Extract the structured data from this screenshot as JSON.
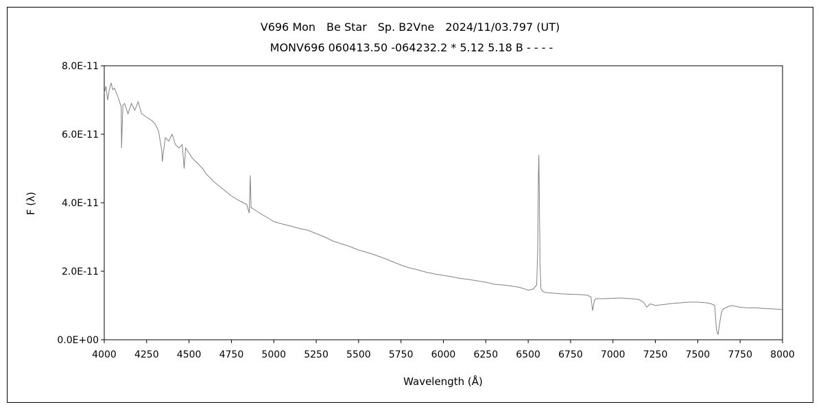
{
  "chart_data": {
    "type": "line",
    "title": "V696 Mon　Be Star　Sp. B2Vne　2024/11/03.797 (UT)",
    "subtitle": "MONV696 060413.50 -064232.2 * 5.12 5.18 B - - - -",
    "xlabel": "Wavelength (Å)",
    "ylabel": "F (λ)",
    "xlim": [
      4000,
      8000
    ],
    "ylim": [
      0,
      8e-11
    ],
    "grid": false,
    "x_ticks": [
      "4000",
      "4250",
      "4500",
      "4750",
      "5000",
      "5250",
      "5500",
      "5750",
      "6000",
      "6250",
      "6500",
      "6750",
      "7000",
      "7250",
      "7500",
      "7750",
      "8000"
    ],
    "y_ticks": [
      "0.0E+00",
      "2.0E-11",
      "4.0E-11",
      "6.0E-11",
      "8.0E-11"
    ],
    "series_color": "#808080",
    "series": [
      {
        "x": [
          4000,
          4010,
          4020,
          4030,
          4040,
          4050,
          4060,
          4080,
          4100,
          4102,
          4110,
          4120,
          4140,
          4160,
          4180,
          4200,
          4220,
          4250,
          4280,
          4300,
          4320,
          4340,
          4342,
          4360,
          4380,
          4400,
          4420,
          4440,
          4460,
          4471,
          4480,
          4500,
          4520,
          4550,
          4580,
          4600,
          4650,
          4700,
          4750,
          4800,
          4840,
          4855,
          4861,
          4866,
          4870,
          4900,
          4950,
          5000,
          5050,
          5100,
          5150,
          5200,
          5250,
          5300,
          5350,
          5400,
          5450,
          5500,
          5550,
          5600,
          5650,
          5700,
          5750,
          5800,
          5850,
          5900,
          5950,
          6000,
          6050,
          6100,
          6150,
          6200,
          6250,
          6300,
          6350,
          6400,
          6450,
          6500,
          6530,
          6550,
          6556,
          6560,
          6563,
          6566,
          6570,
          6575,
          6585,
          6600,
          6650,
          6700,
          6750,
          6800,
          6850,
          6870,
          6880,
          6890,
          6900,
          6950,
          7000,
          7050,
          7100,
          7150,
          7180,
          7200,
          7220,
          7250,
          7300,
          7350,
          7400,
          7450,
          7500,
          7550,
          7580,
          7600,
          7610,
          7620,
          7630,
          7640,
          7650,
          7680,
          7700,
          7750,
          7800,
          7850,
          7900,
          7950,
          8000
        ],
        "y": [
          7.2e-11,
          7.4e-11,
          7e-11,
          7.3e-11,
          7.5e-11,
          7.3e-11,
          7.35e-11,
          7.1e-11,
          6.8e-11,
          5.6e-11,
          6.85e-11,
          6.9e-11,
          6.6e-11,
          6.9e-11,
          6.7e-11,
          6.95e-11,
          6.6e-11,
          6.5e-11,
          6.4e-11,
          6.3e-11,
          6.1e-11,
          5.5e-11,
          5.2e-11,
          5.9e-11,
          5.8e-11,
          6e-11,
          5.7e-11,
          5.6e-11,
          5.7e-11,
          5e-11,
          5.6e-11,
          5.45e-11,
          5.3e-11,
          5.15e-11,
          5e-11,
          4.85e-11,
          4.6e-11,
          4.4e-11,
          4.2e-11,
          4.05e-11,
          3.95e-11,
          3.7e-11,
          4.8e-11,
          3.85e-11,
          3.85e-11,
          3.75e-11,
          3.6e-11,
          3.45e-11,
          3.38e-11,
          3.32e-11,
          3.25e-11,
          3.2e-11,
          3.1e-11,
          3e-11,
          2.88e-11,
          2.8e-11,
          2.72e-11,
          2.62e-11,
          2.55e-11,
          2.47e-11,
          2.38e-11,
          2.28e-11,
          2.18e-11,
          2.1e-11,
          2.04e-11,
          1.97e-11,
          1.92e-11,
          1.88e-11,
          1.84e-11,
          1.79e-11,
          1.76e-11,
          1.72e-11,
          1.68e-11,
          1.62e-11,
          1.6e-11,
          1.57e-11,
          1.53e-11,
          1.45e-11,
          1.48e-11,
          1.6e-11,
          2.6e-11,
          4.8e-11,
          5.4e-11,
          4.2e-11,
          2.2e-11,
          1.5e-11,
          1.42e-11,
          1.38e-11,
          1.36e-11,
          1.34e-11,
          1.33e-11,
          1.32e-11,
          1.3e-11,
          1.25e-11,
          8.5e-12,
          1.15e-11,
          1.2e-11,
          1.2e-11,
          1.21e-11,
          1.22e-11,
          1.2e-11,
          1.18e-11,
          1.1e-11,
          9.5e-12,
          1.05e-11,
          1e-11,
          1.03e-11,
          1.06e-11,
          1.08e-11,
          1.1e-11,
          1.1e-11,
          1.08e-11,
          1.05e-11,
          1e-11,
          3e-12,
          1.5e-12,
          5e-12,
          8e-12,
          9e-12,
          9.7e-12,
          1e-11,
          9.5e-12,
          9.3e-12,
          9.3e-12,
          9.1e-12,
          9e-12,
          8.8e-12
        ]
      }
    ]
  }
}
